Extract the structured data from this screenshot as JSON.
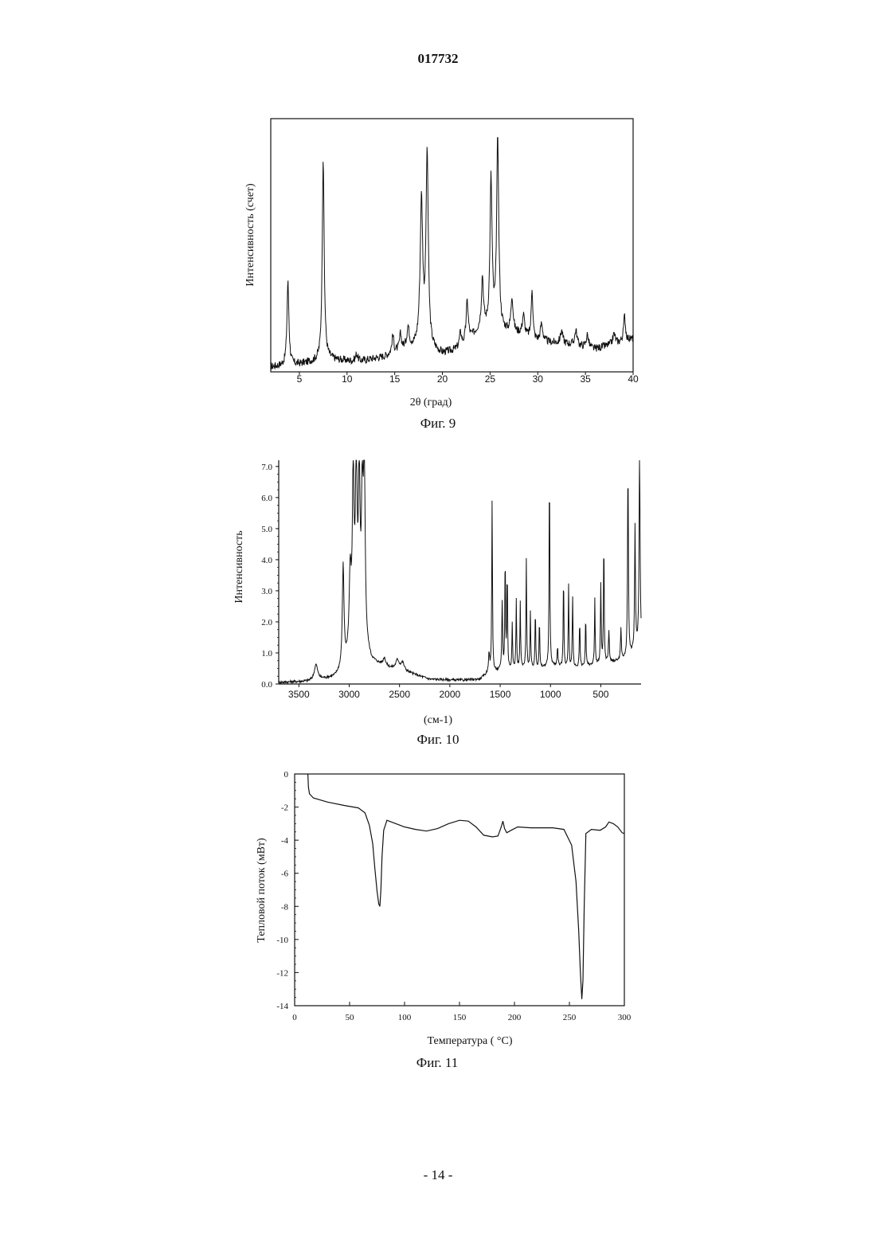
{
  "page": {
    "doc_number": "017732",
    "page_number": "- 14 -"
  },
  "chart_data": [
    {
      "type": "line",
      "caption": "Фиг. 9",
      "title": "",
      "xlabel": "2θ (град)",
      "ylabel": "Интенсивность (счет)",
      "xlim": [
        2,
        40
      ],
      "ylim": [
        0,
        1
      ],
      "xticks": [
        5,
        10,
        15,
        20,
        25,
        30,
        35,
        40
      ],
      "yticks": [],
      "grid": false,
      "legend": "none",
      "color": "#111111",
      "baseline": [
        [
          2,
          0.02
        ],
        [
          5,
          0.03
        ],
        [
          8,
          0.05
        ],
        [
          11,
          0.04
        ],
        [
          14,
          0.06
        ],
        [
          16,
          0.09
        ],
        [
          18,
          0.1
        ],
        [
          20,
          0.07
        ],
        [
          22,
          0.09
        ],
        [
          24,
          0.17
        ],
        [
          26,
          0.16
        ],
        [
          28,
          0.15
        ],
        [
          30,
          0.12
        ],
        [
          33,
          0.11
        ],
        [
          36,
          0.09
        ],
        [
          40,
          0.13
        ]
      ],
      "peaks": [
        {
          "x": 3.8,
          "h": 0.33,
          "w": 0.12
        },
        {
          "x": 7.5,
          "h": 0.8,
          "w": 0.12
        },
        {
          "x": 11.0,
          "h": 0.03,
          "w": 0.15
        },
        {
          "x": 14.8,
          "h": 0.07,
          "w": 0.12
        },
        {
          "x": 15.6,
          "h": 0.06,
          "w": 0.12
        },
        {
          "x": 16.4,
          "h": 0.08,
          "w": 0.15
        },
        {
          "x": 17.8,
          "h": 0.57,
          "w": 0.16
        },
        {
          "x": 18.4,
          "h": 0.75,
          "w": 0.14
        },
        {
          "x": 21.9,
          "h": 0.06,
          "w": 0.15
        },
        {
          "x": 22.6,
          "h": 0.16,
          "w": 0.14
        },
        {
          "x": 24.2,
          "h": 0.2,
          "w": 0.12
        },
        {
          "x": 25.1,
          "h": 0.59,
          "w": 0.13
        },
        {
          "x": 25.8,
          "h": 0.76,
          "w": 0.13
        },
        {
          "x": 27.3,
          "h": 0.14,
          "w": 0.13
        },
        {
          "x": 28.5,
          "h": 0.08,
          "w": 0.14
        },
        {
          "x": 29.4,
          "h": 0.2,
          "w": 0.1
        },
        {
          "x": 30.4,
          "h": 0.07,
          "w": 0.15
        },
        {
          "x": 32.5,
          "h": 0.05,
          "w": 0.15
        },
        {
          "x": 34.0,
          "h": 0.06,
          "w": 0.15
        },
        {
          "x": 35.2,
          "h": 0.05,
          "w": 0.15
        },
        {
          "x": 38.0,
          "h": 0.04,
          "w": 0.15
        },
        {
          "x": 39.1,
          "h": 0.1,
          "w": 0.12
        }
      ],
      "noise": 0.015
    },
    {
      "type": "line",
      "caption": "Фиг. 10",
      "title": "",
      "xlabel": "(см-1)",
      "ylabel": "Интенсивность",
      "xlim": [
        3700,
        100
      ],
      "ylim": [
        0,
        7.2
      ],
      "xticks": [
        3500,
        3000,
        2500,
        2000,
        1500,
        1000,
        500
      ],
      "yticks": [
        0.0,
        1.0,
        2.0,
        3.0,
        4.0,
        5.0,
        6.0,
        7.0
      ],
      "ytick_labels": [
        "0.0",
        "1.0",
        "2.0",
        "3.0",
        "4.0",
        "5.0",
        "6.0",
        "7.0"
      ],
      "grid": false,
      "legend": "none",
      "color": "#111111",
      "baseline": [
        [
          3700,
          0.05
        ],
        [
          3400,
          0.08
        ],
        [
          3150,
          0.2
        ],
        [
          3060,
          0.4
        ],
        [
          2950,
          1.0
        ],
        [
          2860,
          1.2
        ],
        [
          2780,
          0.7
        ],
        [
          2600,
          0.5
        ],
        [
          2450,
          0.4
        ],
        [
          2200,
          0.15
        ],
        [
          1900,
          0.12
        ],
        [
          1700,
          0.15
        ],
        [
          1620,
          0.35
        ],
        [
          1550,
          0.4
        ],
        [
          1300,
          0.5
        ],
        [
          1100,
          0.5
        ],
        [
          1000,
          0.6
        ],
        [
          800,
          0.5
        ],
        [
          600,
          0.6
        ],
        [
          400,
          0.7
        ],
        [
          250,
          0.8
        ],
        [
          100,
          1.2
        ]
      ],
      "peaks": [
        {
          "x": 3330,
          "h": 0.5,
          "w": 20
        },
        {
          "x": 3060,
          "h": 3.3,
          "w": 10
        },
        {
          "x": 2990,
          "h": 2.5,
          "w": 12
        },
        {
          "x": 2960,
          "h": 5.5,
          "w": 10
        },
        {
          "x": 2930,
          "h": 5.8,
          "w": 10
        },
        {
          "x": 2900,
          "h": 5.2,
          "w": 10
        },
        {
          "x": 2870,
          "h": 4.2,
          "w": 10
        },
        {
          "x": 2850,
          "h": 5.7,
          "w": 10
        },
        {
          "x": 2650,
          "h": 0.25,
          "w": 15
        },
        {
          "x": 2520,
          "h": 0.3,
          "w": 20
        },
        {
          "x": 2470,
          "h": 0.25,
          "w": 20
        },
        {
          "x": 1610,
          "h": 0.6,
          "w": 7
        },
        {
          "x": 1580,
          "h": 5.5,
          "w": 4
        },
        {
          "x": 1480,
          "h": 2.2,
          "w": 5
        },
        {
          "x": 1450,
          "h": 3.7,
          "w": 4
        },
        {
          "x": 1430,
          "h": 3.2,
          "w": 4
        },
        {
          "x": 1380,
          "h": 1.5,
          "w": 4
        },
        {
          "x": 1340,
          "h": 2.2,
          "w": 4
        },
        {
          "x": 1300,
          "h": 2.1,
          "w": 4
        },
        {
          "x": 1240,
          "h": 3.5,
          "w": 4
        },
        {
          "x": 1200,
          "h": 1.8,
          "w": 4
        },
        {
          "x": 1150,
          "h": 1.9,
          "w": 4
        },
        {
          "x": 1110,
          "h": 1.6,
          "w": 4
        },
        {
          "x": 1010,
          "h": 6.5,
          "w": 4
        },
        {
          "x": 930,
          "h": 0.6,
          "w": 5
        },
        {
          "x": 870,
          "h": 3.0,
          "w": 4
        },
        {
          "x": 820,
          "h": 2.7,
          "w": 4
        },
        {
          "x": 780,
          "h": 2.3,
          "w": 4
        },
        {
          "x": 710,
          "h": 1.5,
          "w": 4
        },
        {
          "x": 650,
          "h": 1.6,
          "w": 4
        },
        {
          "x": 560,
          "h": 2.1,
          "w": 4
        },
        {
          "x": 500,
          "h": 2.5,
          "w": 4
        },
        {
          "x": 470,
          "h": 4.1,
          "w": 4
        },
        {
          "x": 420,
          "h": 1.0,
          "w": 5
        },
        {
          "x": 300,
          "h": 1.0,
          "w": 5
        },
        {
          "x": 230,
          "h": 6.2,
          "w": 5
        },
        {
          "x": 160,
          "h": 4.0,
          "w": 5
        },
        {
          "x": 115,
          "h": 6.2,
          "w": 6
        }
      ],
      "noise": 0.04
    },
    {
      "type": "line",
      "caption": "Фиг. 11",
      "title": "",
      "xlabel": "Температура ( °C)",
      "ylabel": "Тепловой поток (мВт)",
      "xlim": [
        0,
        300
      ],
      "ylim": [
        -14,
        0
      ],
      "xticks": [
        0,
        50,
        100,
        150,
        200,
        250,
        300
      ],
      "yticks": [
        0,
        -2,
        -4,
        -6,
        -8,
        -10,
        -12,
        -14
      ],
      "ytick_labels": [
        "0",
        "-2",
        "-4",
        "-6",
        "-8",
        "-10",
        "-12",
        "-14"
      ],
      "grid": false,
      "legend": "none",
      "color": "#111111",
      "points": [
        [
          12,
          0
        ],
        [
          12.5,
          -0.8
        ],
        [
          13.5,
          -1.2
        ],
        [
          17,
          -1.45
        ],
        [
          30,
          -1.7
        ],
        [
          45,
          -1.9
        ],
        [
          58,
          -2.05
        ],
        [
          64,
          -2.35
        ],
        [
          68,
          -3.1
        ],
        [
          71,
          -4.2
        ],
        [
          73,
          -5.7
        ],
        [
          75,
          -7.1
        ],
        [
          76.5,
          -7.85
        ],
        [
          77.5,
          -8.0
        ],
        [
          78.5,
          -7.0
        ],
        [
          79.5,
          -5.0
        ],
        [
          81,
          -3.4
        ],
        [
          84,
          -2.8
        ],
        [
          90,
          -2.95
        ],
        [
          100,
          -3.2
        ],
        [
          110,
          -3.35
        ],
        [
          120,
          -3.45
        ],
        [
          130,
          -3.3
        ],
        [
          140,
          -3.0
        ],
        [
          150,
          -2.8
        ],
        [
          158,
          -2.85
        ],
        [
          165,
          -3.2
        ],
        [
          172,
          -3.7
        ],
        [
          180,
          -3.8
        ],
        [
          185,
          -3.75
        ],
        [
          188,
          -3.2
        ],
        [
          189.5,
          -2.85
        ],
        [
          191,
          -3.3
        ],
        [
          193,
          -3.55
        ],
        [
          197,
          -3.4
        ],
        [
          203,
          -3.2
        ],
        [
          215,
          -3.25
        ],
        [
          235,
          -3.25
        ],
        [
          245,
          -3.35
        ],
        [
          252,
          -4.3
        ],
        [
          256,
          -6.5
        ],
        [
          258.5,
          -9.5
        ],
        [
          260,
          -12.0
        ],
        [
          261.3,
          -13.6
        ],
        [
          262.3,
          -12.5
        ],
        [
          263.5,
          -8.0
        ],
        [
          265,
          -3.6
        ],
        [
          270,
          -3.35
        ],
        [
          278,
          -3.4
        ],
        [
          283,
          -3.2
        ],
        [
          286,
          -2.9
        ],
        [
          290,
          -3.0
        ],
        [
          294,
          -3.2
        ],
        [
          298,
          -3.55
        ],
        [
          300,
          -3.6
        ]
      ]
    }
  ]
}
